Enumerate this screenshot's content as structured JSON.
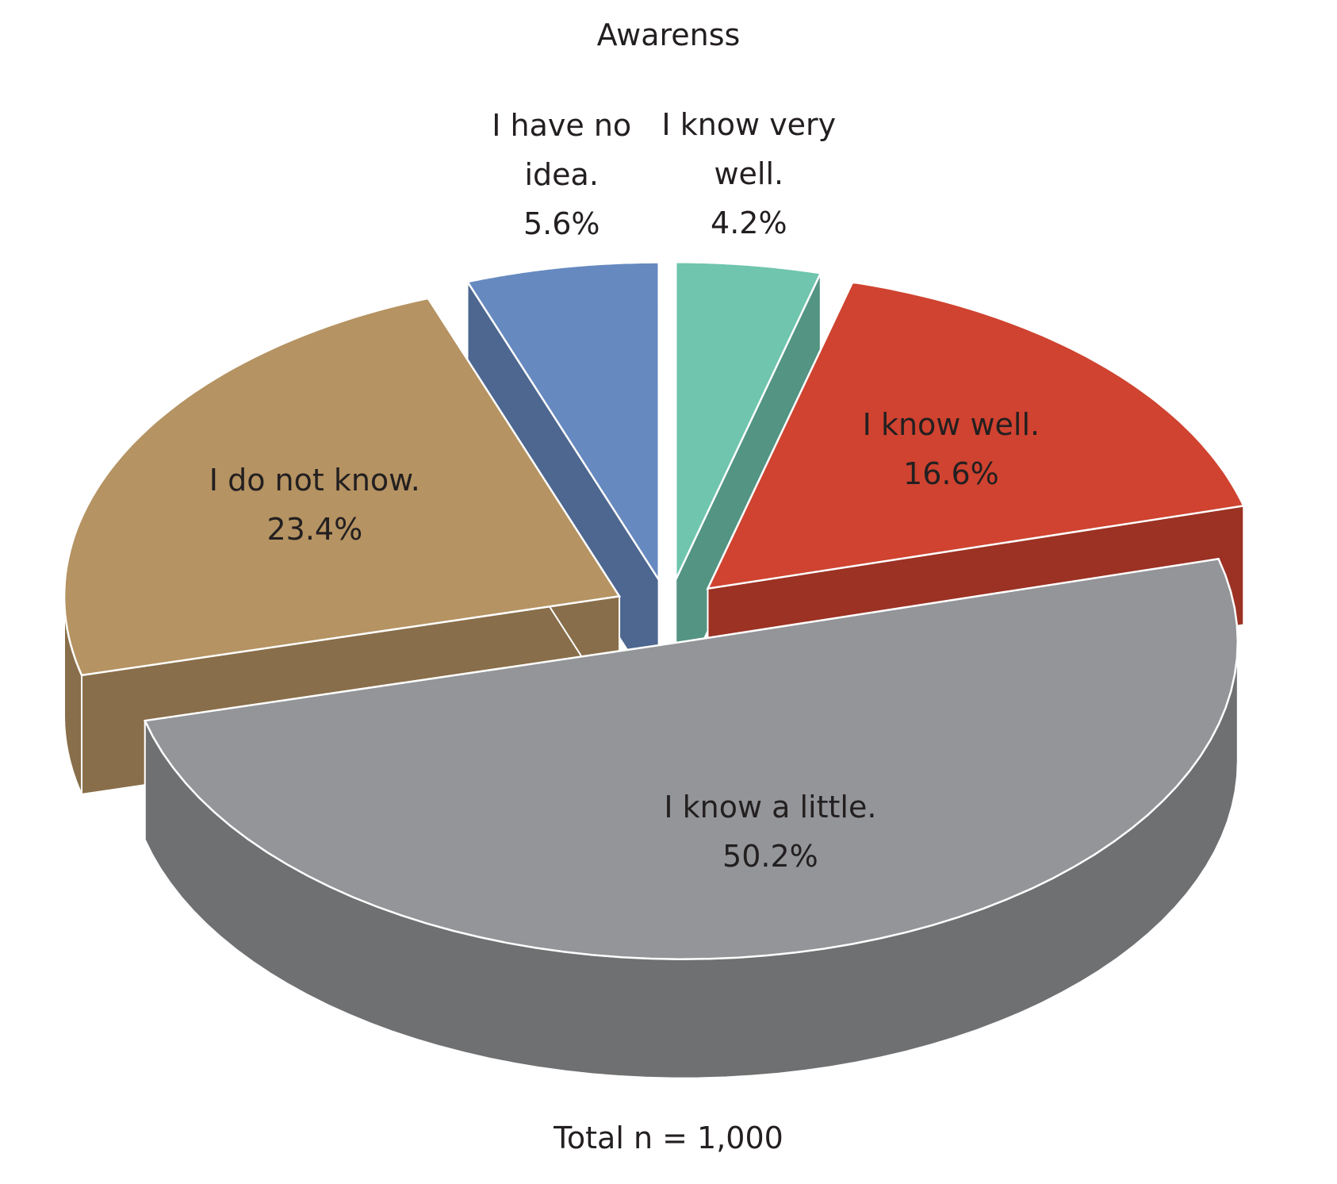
{
  "chart_data": {
    "type": "pie3d",
    "title": "Awarenss",
    "footnote": "Total n = 1,000",
    "categories": [
      "I know very well.",
      "I know well.",
      "I know a little.",
      "I do not know.",
      "I have no idea."
    ],
    "values": [
      4.2,
      16.6,
      50.2,
      23.4,
      5.6
    ],
    "value_labels": [
      "4.2%",
      "16.6%",
      "50.2%",
      "23.4%",
      "5.6%"
    ],
    "colors": [
      "#6fc5ad",
      "#cf4330",
      "#939598",
      "#b59362",
      "#6689c0"
    ]
  }
}
